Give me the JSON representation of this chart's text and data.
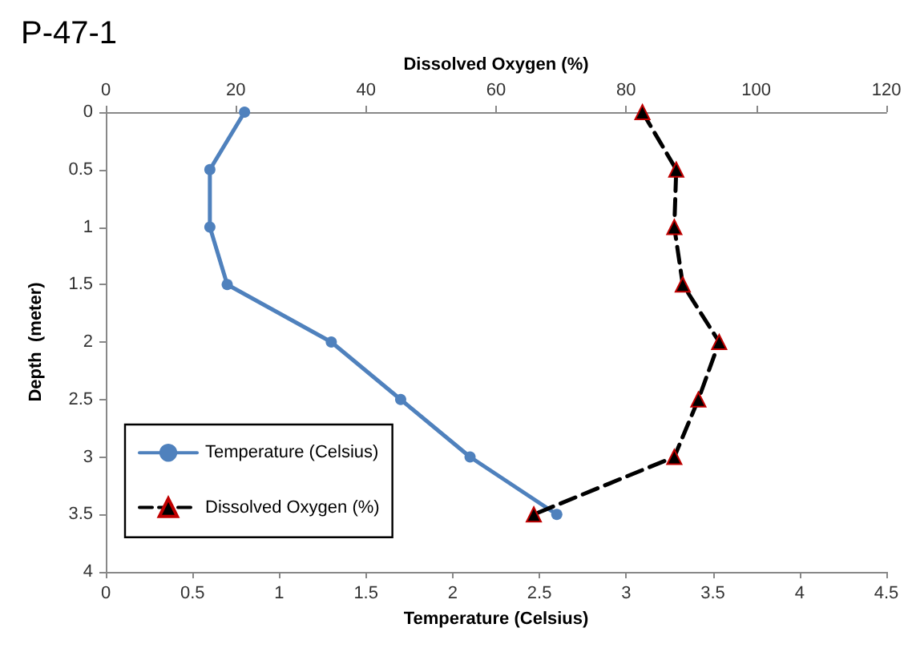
{
  "chart_data": {
    "type": "line",
    "title": "P-47-1",
    "xlabel": "Temperature (Celsius)",
    "x2label": "Dissolved Oxygen (%)",
    "ylabel": "Depth  (meter)",
    "xlim": [
      0,
      4.5
    ],
    "xticks": [
      0,
      0.5,
      1,
      1.5,
      2,
      2.5,
      3,
      3.5,
      4,
      4.5
    ],
    "x2lim": [
      0,
      120
    ],
    "x2ticks": [
      0,
      20,
      40,
      60,
      80,
      100,
      120
    ],
    "ylim": [
      4,
      0
    ],
    "yticks": [
      0,
      0.5,
      1,
      1.5,
      2,
      2.5,
      3,
      3.5,
      4
    ],
    "grid": false,
    "legend": "bottom left",
    "series": [
      {
        "name": "Temperature (Celsius)",
        "color": "#4f81bd",
        "marker": "circle",
        "line_style": "solid",
        "x": [
          0.8,
          0.6,
          0.6,
          0.7,
          1.3,
          1.7,
          2.1,
          2.6
        ],
        "values": [
          0,
          0.5,
          1,
          1.5,
          2,
          2.5,
          3,
          3.5
        ]
      },
      {
        "name": "Dissolved Oxygen (%)",
        "color": "#000000",
        "marker": "triangle",
        "line_style": "dashed",
        "axis": "x2",
        "x": [
          82.5,
          87.7,
          87.4,
          88.7,
          94.3,
          91.1,
          87.4,
          65.8
        ],
        "values": [
          0,
          0.5,
          1,
          1.5,
          2,
          2.5,
          3,
          3.5
        ]
      }
    ]
  }
}
